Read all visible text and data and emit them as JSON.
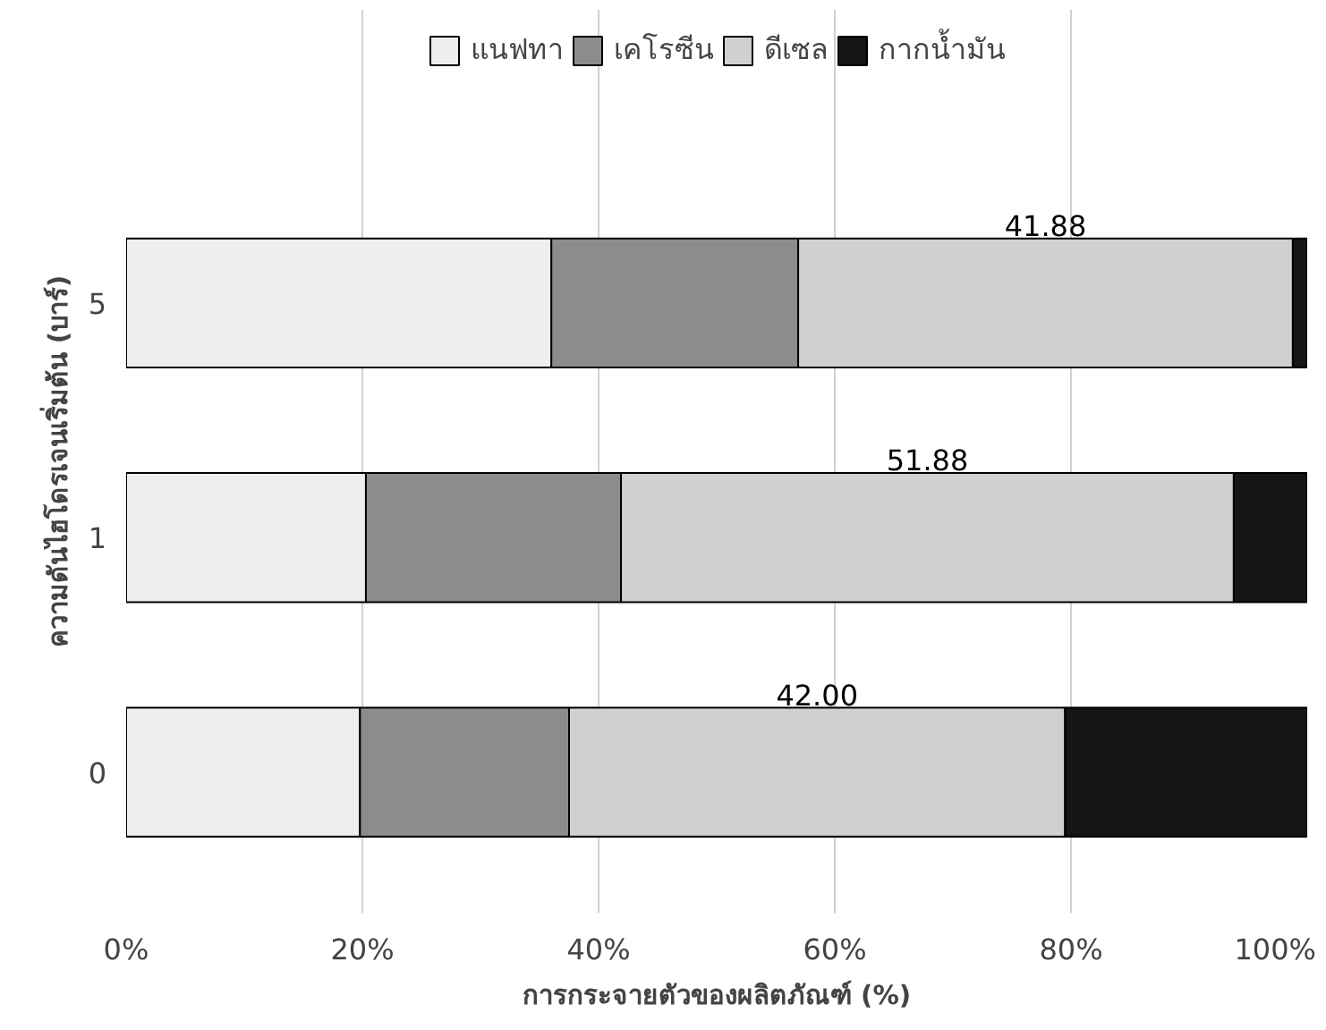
{
  "chart_data": {
    "type": "bar",
    "orientation": "horizontal",
    "stacked": true,
    "categories": [
      "5",
      "1",
      "0"
    ],
    "series": [
      {
        "name": "แนฟทา",
        "color": "#eeeeee",
        "values": [
          36.0,
          20.3,
          19.8
        ]
      },
      {
        "name": "เคโรซีน",
        "color": "#8c8c8c",
        "values": [
          20.9,
          21.6,
          17.7
        ]
      },
      {
        "name": "ดีเซล",
        "color": "#d0d0d0",
        "values": [
          41.88,
          51.88,
          42.0
        ],
        "value_labels": [
          "41.88",
          "51.88",
          "42.00"
        ]
      },
      {
        "name": "กากน้ำมัน",
        "color": "#151515",
        "values": [
          1.2,
          6.2,
          20.5
        ]
      }
    ],
    "xlim": [
      0,
      100
    ],
    "xticks": [
      {
        "value": 0,
        "label": "0%"
      },
      {
        "value": 20,
        "label": "20%"
      },
      {
        "value": 40,
        "label": "40%"
      },
      {
        "value": 60,
        "label": "60%"
      },
      {
        "value": 80,
        "label": "80%"
      },
      {
        "value": 100,
        "label": "100%"
      }
    ],
    "xlabel": "การกระจายตัวของผลิตภัณฑ์ (%)",
    "ylabel": "ความดันไฮโดรเจนเริ่มต้น (บาร์)",
    "grid": "x",
    "legend": "top"
  }
}
